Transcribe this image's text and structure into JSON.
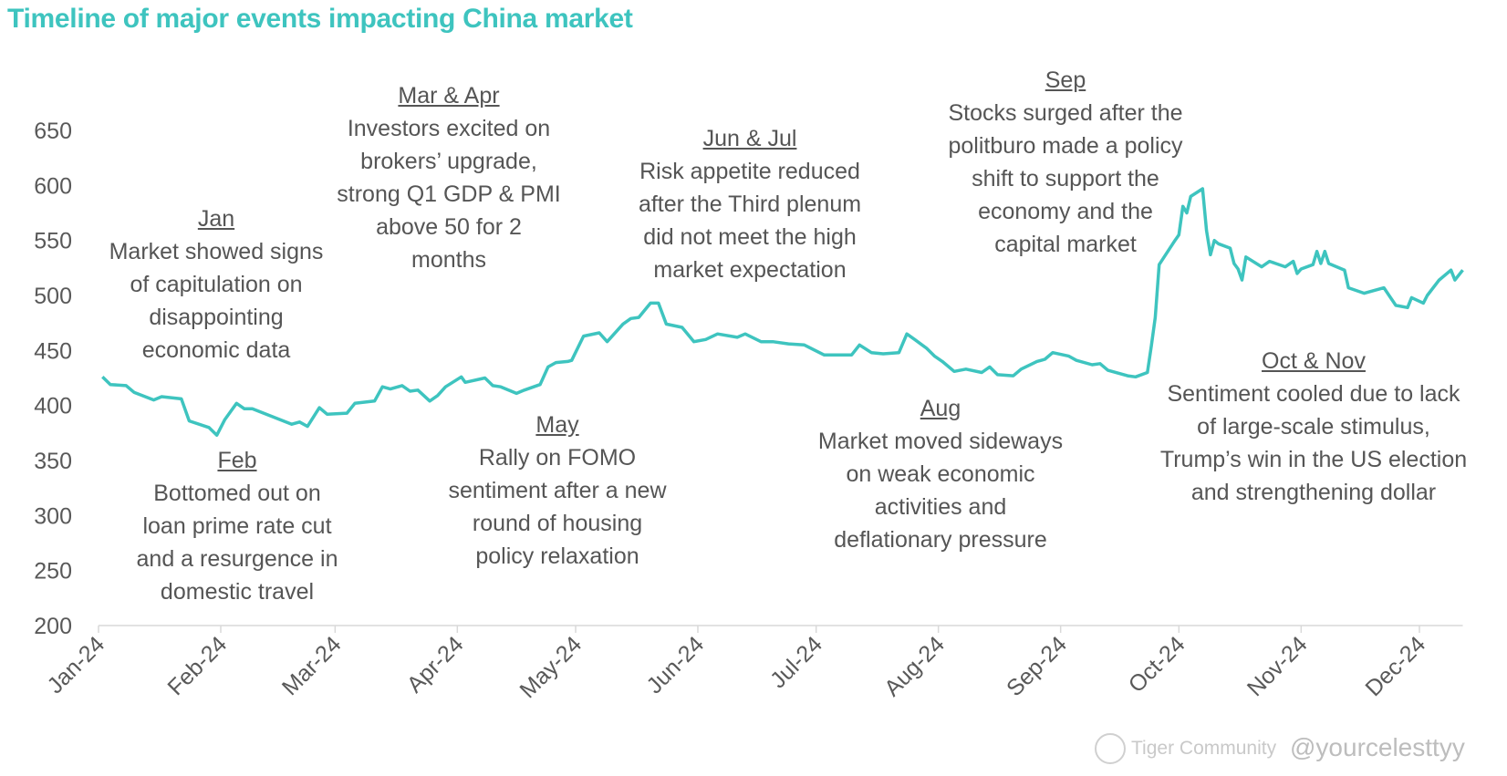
{
  "chart_data": {
    "type": "line",
    "title": "Timeline of major events impacting China market",
    "xlabel": "",
    "ylabel": "",
    "ylim": [
      200,
      650
    ],
    "yticks": [
      200,
      250,
      300,
      350,
      400,
      450,
      500,
      550,
      600,
      650
    ],
    "xlim": [
      "2024-01-01",
      "2024-12-12"
    ],
    "xticks": [
      {
        "date": "2024-01-01",
        "label": "Jan-24"
      },
      {
        "date": "2024-02-01",
        "label": "Feb-24"
      },
      {
        "date": "2024-03-01",
        "label": "Mar-24"
      },
      {
        "date": "2024-04-01",
        "label": "Apr-24"
      },
      {
        "date": "2024-05-01",
        "label": "May-24"
      },
      {
        "date": "2024-06-01",
        "label": "Jun-24"
      },
      {
        "date": "2024-07-01",
        "label": "Jul-24"
      },
      {
        "date": "2024-08-01",
        "label": "Aug-24"
      },
      {
        "date": "2024-09-01",
        "label": "Sep-24"
      },
      {
        "date": "2024-10-01",
        "label": "Oct-24"
      },
      {
        "date": "2024-11-01",
        "label": "Nov-24"
      },
      {
        "date": "2024-12-01",
        "label": "Dec-24"
      }
    ],
    "grid": false,
    "line_color": "#3ec4bf",
    "series": [
      {
        "points": [
          [
            "2024-01-02",
            426
          ],
          [
            "2024-01-04",
            419
          ],
          [
            "2024-01-08",
            418
          ],
          [
            "2024-01-10",
            412
          ],
          [
            "2024-01-15",
            405
          ],
          [
            "2024-01-17",
            408
          ],
          [
            "2024-01-22",
            406
          ],
          [
            "2024-01-24",
            386
          ],
          [
            "2024-01-29",
            380
          ],
          [
            "2024-01-31",
            373
          ],
          [
            "2024-02-02",
            387
          ],
          [
            "2024-02-05",
            402
          ],
          [
            "2024-02-07",
            397
          ],
          [
            "2024-02-09",
            397
          ],
          [
            "2024-02-19",
            383
          ],
          [
            "2024-02-21",
            385
          ],
          [
            "2024-02-23",
            381
          ],
          [
            "2024-02-26",
            398
          ],
          [
            "2024-02-28",
            392
          ],
          [
            "2024-03-04",
            393
          ],
          [
            "2024-03-06",
            402
          ],
          [
            "2024-03-11",
            404
          ],
          [
            "2024-03-13",
            417
          ],
          [
            "2024-03-15",
            415
          ],
          [
            "2024-03-18",
            418
          ],
          [
            "2024-03-20",
            413
          ],
          [
            "2024-03-22",
            414
          ],
          [
            "2024-03-25",
            404
          ],
          [
            "2024-03-27",
            409
          ],
          [
            "2024-03-29",
            417
          ],
          [
            "2024-04-02",
            426
          ],
          [
            "2024-04-03",
            421
          ],
          [
            "2024-04-08",
            425
          ],
          [
            "2024-04-10",
            418
          ],
          [
            "2024-04-12",
            417
          ],
          [
            "2024-04-16",
            411
          ],
          [
            "2024-04-18",
            414
          ],
          [
            "2024-04-22",
            419
          ],
          [
            "2024-04-24",
            435
          ],
          [
            "2024-04-26",
            439
          ],
          [
            "2024-04-29",
            440
          ],
          [
            "2024-04-30",
            441
          ],
          [
            "2024-05-03",
            463
          ],
          [
            "2024-05-07",
            466
          ],
          [
            "2024-05-09",
            458
          ],
          [
            "2024-05-13",
            474
          ],
          [
            "2024-05-15",
            479
          ],
          [
            "2024-05-17",
            480
          ],
          [
            "2024-05-20",
            493
          ],
          [
            "2024-05-22",
            493
          ],
          [
            "2024-05-24",
            474
          ],
          [
            "2024-05-28",
            471
          ],
          [
            "2024-05-31",
            458
          ],
          [
            "2024-06-03",
            460
          ],
          [
            "2024-06-06",
            465
          ],
          [
            "2024-06-11",
            462
          ],
          [
            "2024-06-13",
            465
          ],
          [
            "2024-06-17",
            458
          ],
          [
            "2024-06-20",
            458
          ],
          [
            "2024-06-24",
            456
          ],
          [
            "2024-06-28",
            455
          ],
          [
            "2024-07-03",
            446
          ],
          [
            "2024-07-05",
            446
          ],
          [
            "2024-07-10",
            446
          ],
          [
            "2024-07-12",
            455
          ],
          [
            "2024-07-15",
            448
          ],
          [
            "2024-07-18",
            447
          ],
          [
            "2024-07-22",
            448
          ],
          [
            "2024-07-24",
            465
          ],
          [
            "2024-07-26",
            460
          ],
          [
            "2024-07-29",
            452
          ],
          [
            "2024-07-31",
            445
          ],
          [
            "2024-08-02",
            440
          ],
          [
            "2024-08-05",
            431
          ],
          [
            "2024-08-08",
            433
          ],
          [
            "2024-08-12",
            430
          ],
          [
            "2024-08-14",
            435
          ],
          [
            "2024-08-16",
            428
          ],
          [
            "2024-08-20",
            427
          ],
          [
            "2024-08-22",
            433
          ],
          [
            "2024-08-26",
            440
          ],
          [
            "2024-08-28",
            442
          ],
          [
            "2024-08-30",
            448
          ],
          [
            "2024-09-03",
            445
          ],
          [
            "2024-09-05",
            441
          ],
          [
            "2024-09-09",
            437
          ],
          [
            "2024-09-11",
            438
          ],
          [
            "2024-09-13",
            432
          ],
          [
            "2024-09-18",
            427
          ],
          [
            "2024-09-20",
            426
          ],
          [
            "2024-09-23",
            430
          ],
          [
            "2024-09-24",
            454
          ],
          [
            "2024-09-25",
            480
          ],
          [
            "2024-09-26",
            528
          ],
          [
            "2024-09-30",
            550
          ],
          [
            "2024-10-01",
            555
          ],
          [
            "2024-10-02",
            581
          ],
          [
            "2024-10-03",
            575
          ],
          [
            "2024-10-04",
            590
          ],
          [
            "2024-10-07",
            597
          ],
          [
            "2024-10-08",
            559
          ],
          [
            "2024-10-09",
            537
          ],
          [
            "2024-10-10",
            550
          ],
          [
            "2024-10-11",
            547
          ],
          [
            "2024-10-14",
            543
          ],
          [
            "2024-10-15",
            529
          ],
          [
            "2024-10-16",
            524
          ],
          [
            "2024-10-17",
            514
          ],
          [
            "2024-10-18",
            535
          ],
          [
            "2024-10-22",
            526
          ],
          [
            "2024-10-24",
            531
          ],
          [
            "2024-10-28",
            526
          ],
          [
            "2024-10-30",
            531
          ],
          [
            "2024-10-31",
            520
          ],
          [
            "2024-11-01",
            524
          ],
          [
            "2024-11-04",
            528
          ],
          [
            "2024-11-05",
            540
          ],
          [
            "2024-11-06",
            529
          ],
          [
            "2024-11-07",
            540
          ],
          [
            "2024-11-08",
            529
          ],
          [
            "2024-11-12",
            523
          ],
          [
            "2024-11-13",
            507
          ],
          [
            "2024-11-17",
            502
          ],
          [
            "2024-11-22",
            507
          ],
          [
            "2024-11-25",
            491
          ],
          [
            "2024-11-28",
            489
          ],
          [
            "2024-11-29",
            498
          ],
          [
            "2024-12-02",
            493
          ],
          [
            "2024-12-03",
            500
          ],
          [
            "2024-12-06",
            514
          ],
          [
            "2024-12-09",
            523
          ],
          [
            "2024-12-10",
            514
          ],
          [
            "2024-12-12",
            523
          ]
        ]
      }
    ],
    "annotations": [
      {
        "id": "jan",
        "head": "Jan",
        "lines": [
          "Market showed signs",
          "of capitulation on",
          "disappointing",
          "economic data"
        ]
      },
      {
        "id": "feb",
        "head": "Feb",
        "lines": [
          "Bottomed out on",
          "loan prime rate cut",
          "and a resurgence in",
          "domestic travel"
        ]
      },
      {
        "id": "marapr",
        "head": "Mar & Apr",
        "lines": [
          "Investors excited on",
          "brokers’ upgrade,",
          "strong Q1 GDP & PMI",
          "above 50 for 2",
          "months"
        ]
      },
      {
        "id": "may",
        "head": "May",
        "lines": [
          "Rally on FOMO",
          "sentiment after a new",
          "round of housing",
          "policy relaxation"
        ]
      },
      {
        "id": "junjul",
        "head": "Jun & Jul",
        "lines": [
          "Risk appetite reduced",
          "after the Third plenum",
          "did not meet the high",
          "market expectation"
        ]
      },
      {
        "id": "aug",
        "head": "Aug",
        "lines": [
          "Market moved sideways",
          "on weak economic",
          "activities and",
          "deflationary pressure"
        ]
      },
      {
        "id": "sep",
        "head": "Sep",
        "lines": [
          "Stocks surged after the",
          "politburo made a policy",
          "shift to support the",
          "economy and the",
          "capital market"
        ]
      },
      {
        "id": "octnov",
        "head": "Oct & Nov",
        "lines": [
          "Sentiment cooled due to lack",
          "of large-scale stimulus,",
          "Trump’s win in the US election",
          "and strengthening dollar"
        ]
      }
    ]
  },
  "watermark": {
    "brand": "Tiger Community",
    "handle": "@yourcelesttyy"
  }
}
